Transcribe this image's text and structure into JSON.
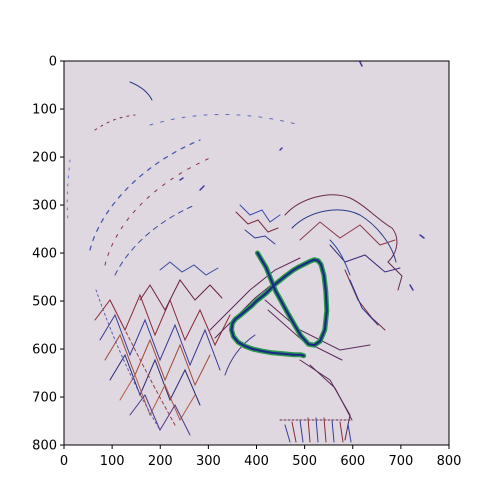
{
  "chart_data": {
    "type": "heatmap",
    "xlim": [
      0,
      800
    ],
    "ylim": [
      800,
      0
    ],
    "x_ticks": [
      0,
      100,
      200,
      300,
      400,
      500,
      600,
      700,
      800
    ],
    "y_ticks": [
      0,
      100,
      200,
      300,
      400,
      500,
      600,
      700,
      800
    ],
    "x_tick_labels": [
      "0",
      "100",
      "200",
      "300",
      "400",
      "500",
      "600",
      "700",
      "800"
    ],
    "y_tick_labels": [
      "0",
      "100",
      "200",
      "300",
      "400",
      "500",
      "600",
      "700",
      "800"
    ],
    "grid": false,
    "background_color": "#e0d8e0",
    "overlay_line_color": "#1a2a8a",
    "overlay_line_edge_color": "#2a9a4a",
    "overlay_curve": {
      "x": [
        402,
        420,
        432,
        440,
        450,
        462,
        478,
        492,
        508,
        520,
        532,
        542,
        546,
        544,
        540,
        534,
        528,
        520,
        510,
        498,
        486,
        476,
        468,
        460,
        450,
        440,
        430,
        420,
        410,
        400,
        390,
        378,
        366,
        356,
        350,
        348,
        352,
        362,
        376,
        392,
        410,
        432,
        456,
        478,
        492,
        498
      ],
      "y": [
        400,
        430,
        460,
        480,
        498,
        520,
        548,
        572,
        590,
        592,
        584,
        560,
        520,
        480,
        446,
        424,
        416,
        414,
        418,
        424,
        430,
        436,
        442,
        448,
        456,
        464,
        474,
        484,
        492,
        500,
        510,
        520,
        530,
        538,
        546,
        560,
        574,
        586,
        594,
        600,
        604,
        608,
        610,
        612,
        612,
        614
      ]
    }
  }
}
